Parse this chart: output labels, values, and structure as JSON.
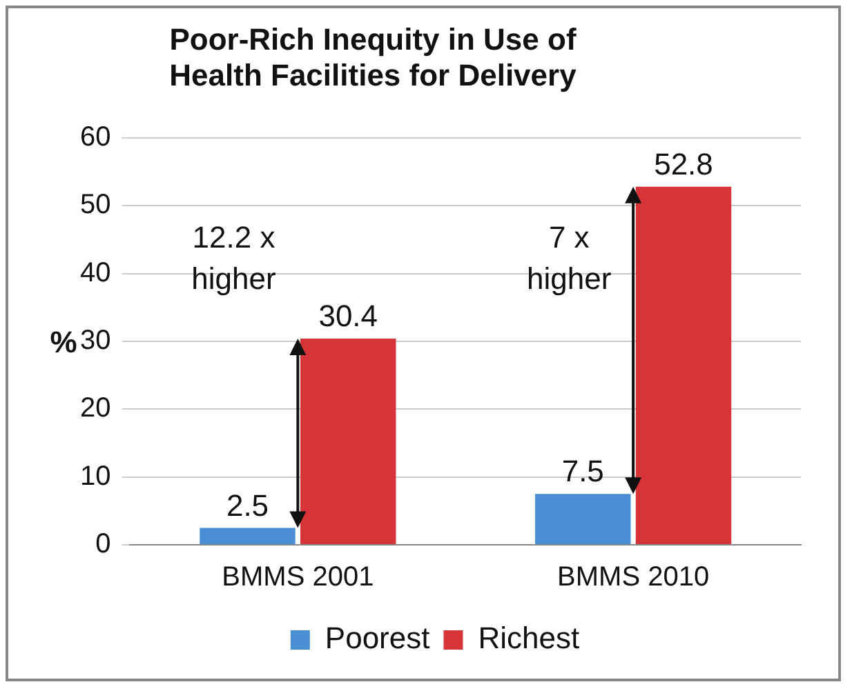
{
  "chart_data": {
    "type": "bar",
    "title": "Poor-Rich Inequity in Use of Health Facilities for Delivery",
    "ylabel": "%",
    "categories": [
      "BMMS 2001",
      "BMMS 2010"
    ],
    "series": [
      {
        "name": "Poorest",
        "color": "#4a8fd6",
        "values": [
          2.5,
          7.5
        ]
      },
      {
        "name": "Richest",
        "color": "#d7343a",
        "values": [
          30.4,
          52.8
        ]
      }
    ],
    "ylim": [
      0,
      60
    ],
    "yticks": [
      0,
      10,
      20,
      30,
      40,
      50,
      60
    ],
    "grid": "y",
    "legend": "bottom",
    "data_labels": true,
    "annotations": [
      "12.2 x higher",
      "7 x higher"
    ]
  }
}
